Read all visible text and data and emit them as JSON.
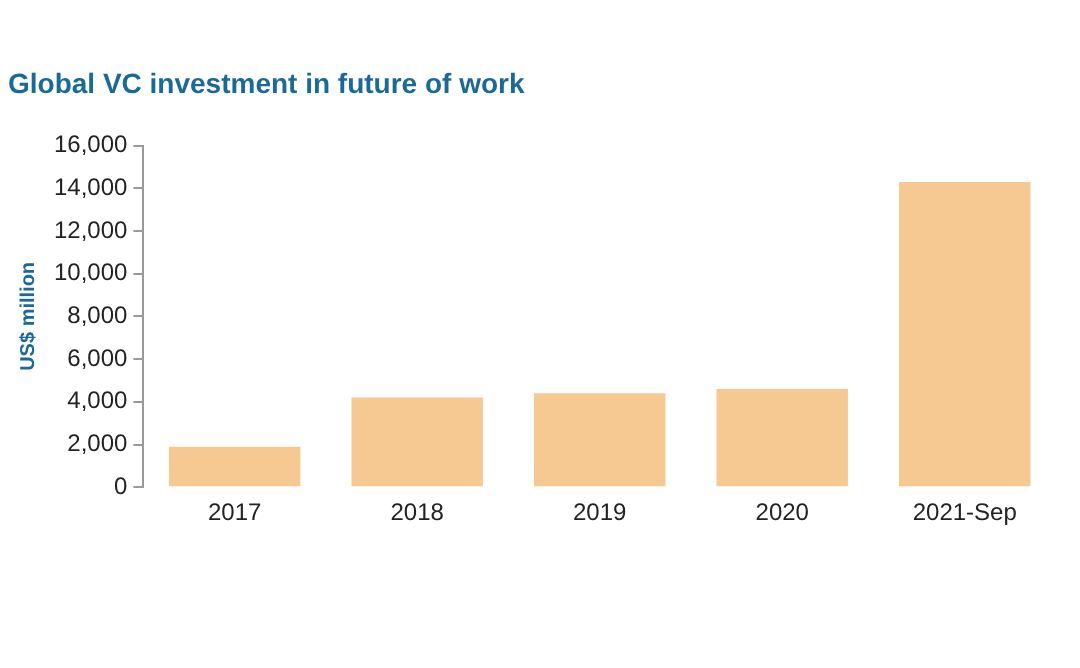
{
  "chart_data": {
    "type": "bar",
    "title": "Global VC investment in future of work",
    "ylabel": "US$ million",
    "categories": [
      "2017",
      "2018",
      "2019",
      "2020",
      "2021-Sep"
    ],
    "values": [
      1900,
      4200,
      4400,
      4600,
      14300
    ],
    "color": "#f7c992",
    "ylim": [
      0,
      16000
    ],
    "yticks": [
      0,
      {
        "value": 2000,
        "label": "2,000"
      },
      {
        "value": 4000,
        "label": "4,000"
      },
      {
        "value": 6000,
        "label": "6,000"
      },
      {
        "value": 8000,
        "label": "8,000"
      },
      {
        "value": 10000,
        "label": "10,000"
      },
      {
        "value": 12000,
        "label": "12,000"
      },
      {
        "value": 14000,
        "label": "14,000"
      },
      {
        "value": 16000,
        "label": "16,000"
      }
    ],
    "grid": false
  }
}
